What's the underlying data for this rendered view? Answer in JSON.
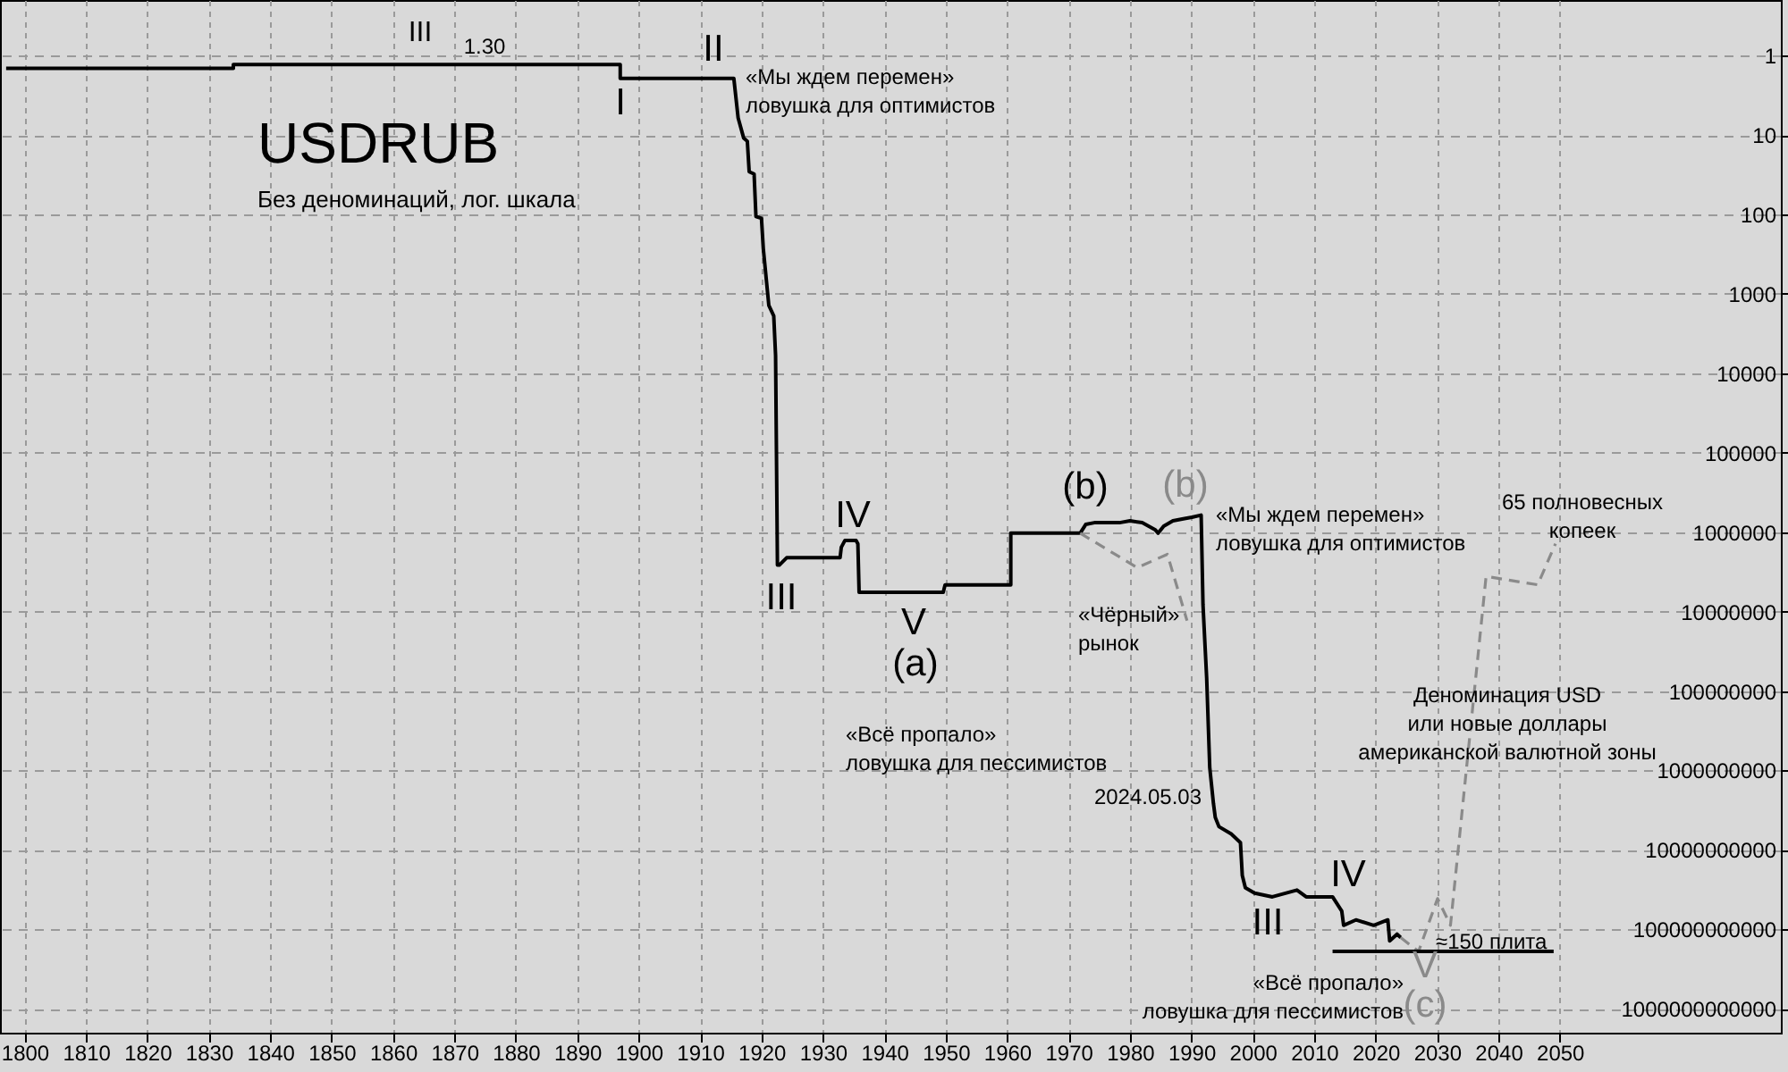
{
  "chart_data": {
    "type": "line",
    "title": "USDRUB",
    "subtitle": "Без деноминаций, лог. шкала",
    "series": [
      {
        "color": "#000000",
        "x": [
          1797,
          1834,
          1834,
          1897,
          1897,
          1915.5,
          1916.2,
          1917.1,
          1917.7,
          1918.0,
          1918.8,
          1919.1,
          1920.0,
          1920.3,
          1921.2,
          1922.0,
          1922.3,
          1922.6,
          1922.9,
          1924.1,
          1932.8,
          1933.0,
          1933.6,
          1935.4,
          1935.7,
          1935.9,
          1949.6,
          1949.9,
          1960.6,
          1960.6,
          1971.9,
          1972.8,
          1974.2,
          1976.2,
          1978.3,
          1980.0,
          1982.0,
          1984.1,
          1984.6,
          1985.5,
          1987.0,
          1988.7,
          1990.1,
          1991.6,
          1991.9,
          1992.2,
          1992.5,
          1992.8,
          1993.0,
          1993.6,
          1993.9,
          1994.5,
          1996.5,
          1998.0,
          1998.3,
          1998.8,
          2000.3,
          2003.2,
          2007.2,
          2008.7,
          2013.0,
          2014.5,
          2014.8,
          2016.8,
          2019.7,
          2022.0,
          2022.3,
          2023.5,
          2024.1
        ],
        "values": [
          1.45,
          1.45,
          1.3,
          1.3,
          1.94,
          1.94,
          6.1,
          10.9,
          12,
          29,
          31,
          106,
          112,
          270,
          1400,
          1900,
          6000,
          2600000,
          2600000,
          2100000,
          2100000,
          1550000,
          1270000,
          1270000,
          1400000,
          5700000,
          5700000,
          4600000,
          4600000,
          1030000,
          1030000,
          800000,
          760000,
          760000,
          760000,
          720000,
          760000,
          930000,
          1030000,
          840000,
          720000,
          680000,
          650000,
          610000,
          8200000,
          24000000,
          69000000,
          330000000,
          920000000,
          2600000000,
          3900000000,
          5100000000,
          6300000000,
          8100000000,
          21000000000,
          30000000000,
          35000000000,
          39000000000,
          32000000000,
          39000000000,
          39000000000,
          59000000000,
          89000000000,
          76000000000,
          89000000000,
          76000000000,
          140000000000,
          115000000000,
          127000000000
        ]
      },
      {
        "color": "#8a8a8a",
        "line_style": "dashed",
        "x": [
          1971.9,
          1981.2,
          1986.1,
          1989.3
        ],
        "values": [
          1030000,
          2800000,
          1900000,
          13000000
        ]
      },
      {
        "color": "#8a8a8a",
        "line_style": "dashed",
        "x": [
          2024.1,
          2027.0,
          2030.1,
          2032.2,
          2038.0,
          2046.4,
          2049.3
        ],
        "values": [
          127000000000,
          190000000000,
          41000000000,
          89000000000,
          3600000,
          4600000,
          1400000
        ]
      },
      {
        "color": "#000000",
        "x": [
          2013.0,
          2049.0
        ],
        "values": [
          190000000000,
          190000000000
        ]
      }
    ],
    "xlim": [
      1796,
      2086
    ],
    "xticks": [
      1800,
      1810,
      1820,
      1830,
      1840,
      1850,
      1860,
      1870,
      1880,
      1890,
      1900,
      1910,
      1920,
      1930,
      1940,
      1950,
      1960,
      1970,
      1980,
      1990,
      2000,
      2010,
      2020,
      2030,
      2040,
      2050
    ],
    "ylim": [
      2000000000000,
      0.2
    ],
    "yticks": [
      1,
      10,
      100,
      1000,
      10000,
      100000,
      1000000,
      10000000,
      100000000,
      1000000000,
      10000000000,
      100000000000,
      1000000000000
    ],
    "log": true,
    "grid": true,
    "line_style": "solid",
    "annotations": [
      "III",
      "1.30",
      "I",
      "II",
      "«Мы ждем перемен»\nловушка для оптимистов",
      "III",
      "IV",
      "V",
      "(a)",
      "«Всё пропало»\nловушка для пессимистов",
      "(b)",
      "(b)",
      "«Мы ждем перемен»\nловушка для оптимистов",
      "«Чёрный»\nрынок",
      "65 полновесных\nкопеек",
      "Деноминация USD\nили новые доллары\nамериканской валютной зоны",
      "2024.05.03",
      "III",
      "IV",
      "«Всё пропало»\nловушка для пессимистов",
      "V",
      "(c)",
      "≈150 плита"
    ]
  }
}
